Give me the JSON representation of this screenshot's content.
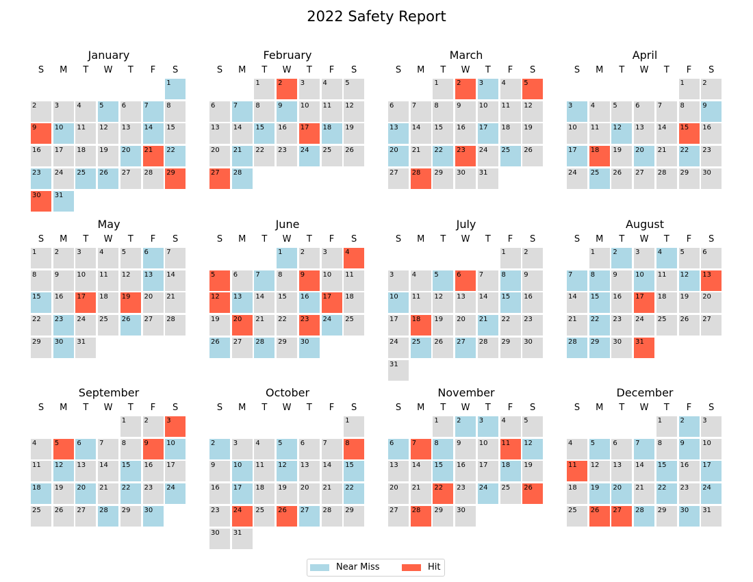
{
  "chart_data": {
    "type": "heatmap",
    "title": "2022 Safety Report",
    "year": 2022,
    "weekday_labels": [
      "S",
      "M",
      "T",
      "W",
      "T",
      "F",
      "S"
    ],
    "colors": {
      "none": "#dcdcdc",
      "near_miss": "#add8e6",
      "hit": "#ff6347"
    },
    "legend": {
      "placement": "bottom-center",
      "items": [
        {
          "label": "Near Miss",
          "category": "near_miss",
          "color": "#add8e6"
        },
        {
          "label": "Hit",
          "category": "hit",
          "color": "#ff6347"
        }
      ]
    },
    "months": [
      {
        "name": "January",
        "first_weekday": 6,
        "days": 31,
        "near_miss": [
          1,
          5,
          7,
          10,
          14,
          20,
          22,
          23,
          25,
          26,
          31
        ],
        "hit": [
          9,
          21,
          29,
          30
        ]
      },
      {
        "name": "February",
        "first_weekday": 2,
        "days": 28,
        "near_miss": [
          7,
          9,
          15,
          18,
          21,
          24,
          28
        ],
        "hit": [
          2,
          17,
          27
        ]
      },
      {
        "name": "March",
        "first_weekday": 2,
        "days": 31,
        "near_miss": [
          3,
          13,
          17,
          20,
          22,
          25
        ],
        "hit": [
          2,
          5,
          23,
          28
        ]
      },
      {
        "name": "April",
        "first_weekday": 5,
        "days": 30,
        "near_miss": [
          3,
          9,
          12,
          17,
          20,
          22,
          25
        ],
        "hit": [
          15,
          18
        ]
      },
      {
        "name": "May",
        "first_weekday": 0,
        "days": 31,
        "near_miss": [
          6,
          13,
          15,
          23,
          26,
          30
        ],
        "hit": [
          17,
          19
        ]
      },
      {
        "name": "June",
        "first_weekday": 3,
        "days": 30,
        "near_miss": [
          1,
          7,
          13,
          16,
          24,
          26,
          28,
          30
        ],
        "hit": [
          4,
          5,
          9,
          12,
          17,
          20,
          23
        ]
      },
      {
        "name": "July",
        "first_weekday": 5,
        "days": 31,
        "near_miss": [
          5,
          8,
          10,
          15,
          21,
          25,
          27
        ],
        "hit": [
          6,
          18
        ]
      },
      {
        "name": "August",
        "first_weekday": 1,
        "days": 31,
        "near_miss": [
          2,
          4,
          7,
          8,
          10,
          12,
          15,
          22,
          28,
          29
        ],
        "hit": [
          13,
          17,
          31
        ]
      },
      {
        "name": "September",
        "first_weekday": 4,
        "days": 30,
        "near_miss": [
          6,
          10,
          12,
          15,
          18,
          20,
          22,
          24,
          28,
          30
        ],
        "hit": [
          3,
          5,
          9
        ]
      },
      {
        "name": "October",
        "first_weekday": 6,
        "days": 31,
        "near_miss": [
          2,
          5,
          10,
          12,
          15,
          17,
          22,
          27
        ],
        "hit": [
          8,
          24,
          26
        ]
      },
      {
        "name": "November",
        "first_weekday": 2,
        "days": 30,
        "near_miss": [
          2,
          3,
          6,
          8,
          12,
          15,
          18,
          24
        ],
        "hit": [
          7,
          11,
          22,
          26,
          28
        ]
      },
      {
        "name": "December",
        "first_weekday": 4,
        "days": 31,
        "near_miss": [
          2,
          5,
          7,
          9,
          15,
          17,
          19,
          20,
          22,
          24,
          28,
          30
        ],
        "hit": [
          11,
          26,
          27
        ]
      }
    ]
  }
}
